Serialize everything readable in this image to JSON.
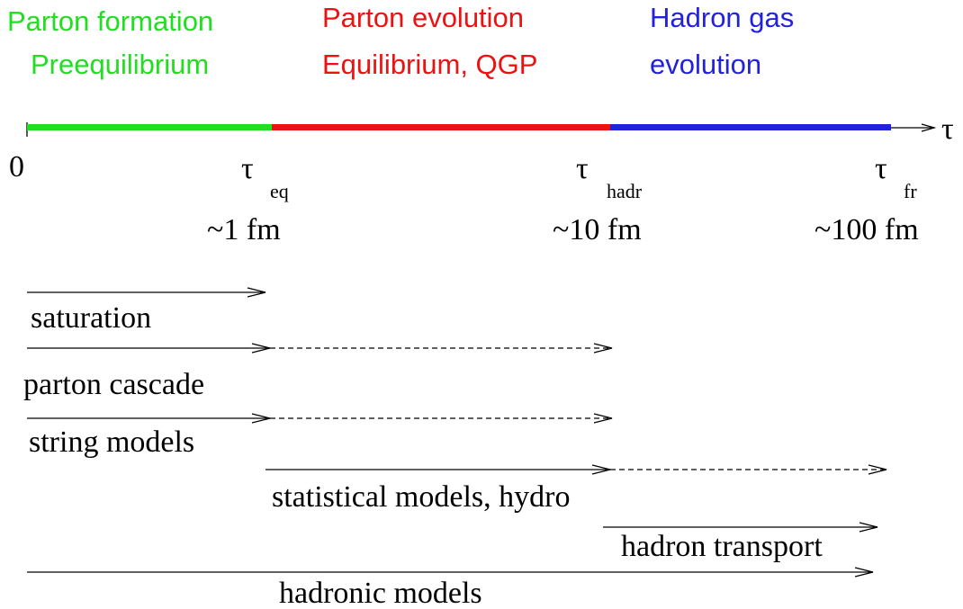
{
  "phases": [
    {
      "lines": [
        "Parton formation",
        "Preequilibrium"
      ]
    },
    {
      "lines": [
        "Parton evolution",
        "Equilibrium, QGP"
      ]
    },
    {
      "lines": [
        "Hadron gas",
        "evolution"
      ]
    }
  ],
  "axis_label": "τ",
  "time_marks": [
    {
      "label": "0"
    },
    {
      "symbol": "τ",
      "subscript": "eq",
      "scale": "~1 fm"
    },
    {
      "symbol": "τ",
      "subscript": "hadr",
      "scale": "~10 fm"
    },
    {
      "symbol": "τ",
      "subscript": "fr",
      "scale": "~100 fm"
    }
  ],
  "models": [
    "saturation",
    "parton cascade",
    "string models",
    "statistical models, hydro",
    "hadron transport",
    "hadronic models"
  ]
}
